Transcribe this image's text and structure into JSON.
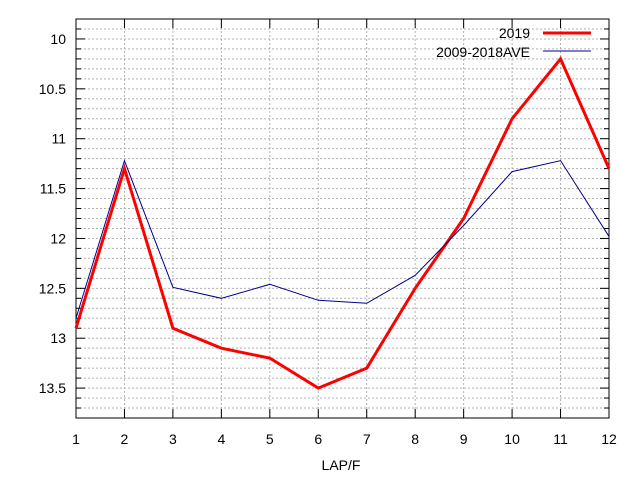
{
  "chart_data": {
    "type": "line",
    "title": "",
    "xlabel": "LAP/F",
    "ylabel": "",
    "x": [
      1,
      2,
      3,
      4,
      5,
      6,
      7,
      8,
      9,
      10,
      11,
      12
    ],
    "xlim": [
      1,
      12
    ],
    "ylim": [
      9.8,
      13.8
    ],
    "y_reversed": true,
    "x_ticks": [
      "1",
      "2",
      "3",
      "4",
      "5",
      "6",
      "7",
      "8",
      "9",
      "10",
      "11",
      "12"
    ],
    "y_ticks": [
      "10",
      "10.5",
      "11",
      "11.5",
      "12",
      "12.5",
      "13",
      "13.5"
    ],
    "grid": true,
    "legend_position": "top-right",
    "series": [
      {
        "name": "2019",
        "color": "#ff0000",
        "values": [
          12.9,
          11.3,
          12.9,
          13.1,
          13.2,
          13.5,
          13.3,
          12.5,
          11.8,
          10.8,
          10.2,
          11.3
        ]
      },
      {
        "name": "2009-2018AVE",
        "color": "#00008b",
        "values": [
          12.8,
          11.22,
          12.49,
          12.6,
          12.46,
          12.62,
          12.65,
          12.37,
          11.87,
          11.33,
          11.22,
          11.98
        ]
      }
    ]
  }
}
